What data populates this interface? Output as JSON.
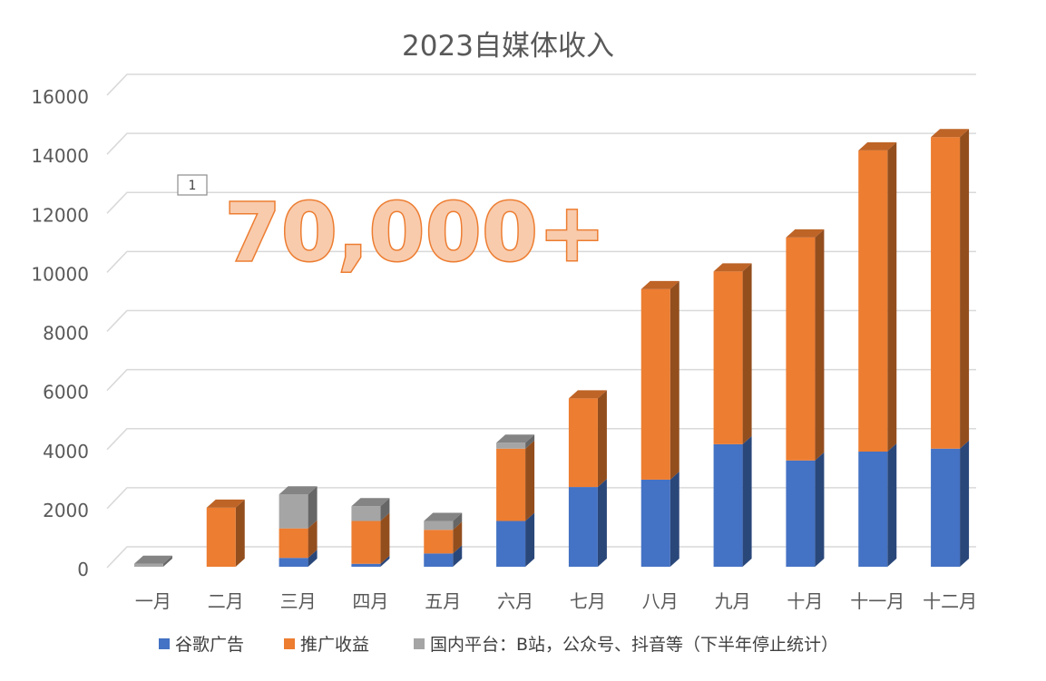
{
  "chart_data": {
    "type": "bar",
    "stacked": true,
    "style": "3d-column",
    "title": "2023自媒体收入",
    "categories": [
      "一月",
      "二月",
      "三月",
      "四月",
      "五月",
      "六月",
      "七月",
      "八月",
      "九月",
      "十月",
      "十一月",
      "十二月"
    ],
    "series": [
      {
        "name": "谷歌广告",
        "color": "#4472c4",
        "values": [
          0,
          0,
          300,
          100,
          450,
          1550,
          2700,
          2950,
          4150,
          3600,
          3900,
          4000
        ]
      },
      {
        "name": "推广收益",
        "color": "#ed7d31",
        "values": [
          0,
          2000,
          1000,
          1450,
          800,
          2450,
          3000,
          6450,
          5850,
          7550,
          10200,
          10550
        ]
      },
      {
        "name": "国内平台：B站，公众号、抖音等（下半年停止统计）",
        "color": "#a5a5a5",
        "values": [
          100,
          0,
          1150,
          500,
          300,
          200,
          0,
          0,
          0,
          0,
          0,
          0
        ]
      }
    ],
    "ylim": [
      0,
      16000
    ],
    "yticks": [
      0,
      2000,
      4000,
      6000,
      8000,
      10000,
      12000,
      14000,
      16000
    ],
    "grid": true,
    "legend_position": "bottom",
    "annotations": [
      "70,000+",
      "1"
    ]
  }
}
